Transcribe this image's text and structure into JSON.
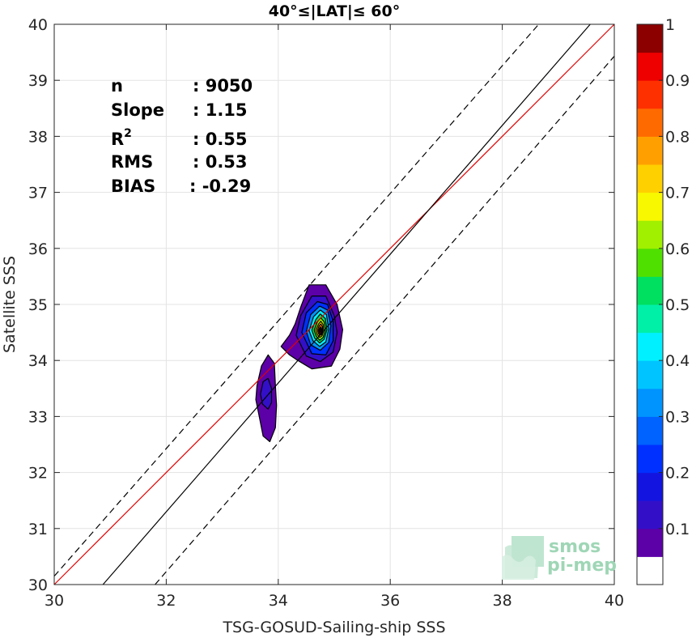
{
  "chart_data": {
    "type": "scatter",
    "subtype": "density-contour",
    "title": "40°≤|LAT|≤ 60°",
    "xlabel": "TSG-GOSUD-Sailing-ship SSS",
    "ylabel": "Satellite SSS",
    "xlim": [
      30,
      40
    ],
    "ylim": [
      30,
      40
    ],
    "xticks": [
      "30",
      "32",
      "34",
      "36",
      "38",
      "40"
    ],
    "yticks": [
      "30",
      "31",
      "32",
      "33",
      "34",
      "35",
      "36",
      "37",
      "38",
      "39",
      "40"
    ],
    "grid": true,
    "stats": [
      {
        "label": "n",
        "value": ": 9050"
      },
      {
        "label": "Slope",
        "value": ": 1.15"
      },
      {
        "label": "R",
        "sup": "2",
        "value": ": 0.55"
      },
      {
        "label": "RMS",
        "value": ": 0.53"
      },
      {
        "label": "BIAS",
        "value": ": -0.29"
      }
    ],
    "lines": [
      {
        "role": "one-to-one",
        "color": "#e00000",
        "style": "solid",
        "points": [
          [
            30,
            30
          ],
          [
            40,
            40
          ]
        ]
      },
      {
        "role": "regression-fit",
        "color": "#000000",
        "style": "solid",
        "points": [
          [
            30.87,
            30
          ],
          [
            39.57,
            40
          ]
        ]
      },
      {
        "role": "upper-bound",
        "color": "#000000",
        "style": "dashed",
        "points": [
          [
            30,
            30.15
          ],
          [
            38.65,
            40
          ]
        ]
      },
      {
        "role": "lower-bound",
        "color": "#000000",
        "style": "dashed",
        "points": [
          [
            31.8,
            30
          ],
          [
            40,
            39.43
          ]
        ]
      }
    ],
    "density_clusters": [
      {
        "center": [
          34.75,
          34.55
        ],
        "levels": [
          {
            "level": 0.05,
            "pts": [
              [
                34.05,
                34.25
              ],
              [
                34.2,
                34.45
              ],
              [
                34.3,
                34.65
              ],
              [
                34.4,
                34.95
              ],
              [
                34.55,
                35.35
              ],
              [
                34.85,
                35.35
              ],
              [
                35.05,
                35.0
              ],
              [
                35.15,
                34.55
              ],
              [
                35.1,
                34.2
              ],
              [
                34.95,
                33.9
              ],
              [
                34.6,
                33.85
              ],
              [
                34.35,
                34.0
              ],
              [
                34.2,
                34.1
              ]
            ]
          },
          {
            "level": 0.1,
            "pts": [
              [
                34.32,
                34.45
              ],
              [
                34.4,
                34.8
              ],
              [
                34.6,
                35.15
              ],
              [
                34.85,
                35.15
              ],
              [
                35.0,
                34.8
              ],
              [
                35.05,
                34.5
              ],
              [
                34.98,
                34.15
              ],
              [
                34.75,
                33.98
              ],
              [
                34.5,
                34.08
              ]
            ]
          },
          {
            "level": 0.2,
            "pts": [
              [
                34.42,
                34.5
              ],
              [
                34.5,
                34.85
              ],
              [
                34.7,
                35.05
              ],
              [
                34.88,
                35.0
              ],
              [
                34.98,
                34.7
              ],
              [
                34.98,
                34.35
              ],
              [
                34.85,
                34.1
              ],
              [
                34.6,
                34.12
              ]
            ]
          },
          {
            "level": 0.3,
            "pts": [
              [
                34.5,
                34.52
              ],
              [
                34.58,
                34.82
              ],
              [
                34.74,
                34.97
              ],
              [
                34.88,
                34.9
              ],
              [
                34.94,
                34.62
              ],
              [
                34.9,
                34.32
              ],
              [
                34.75,
                34.18
              ],
              [
                34.58,
                34.28
              ]
            ]
          },
          {
            "level": 0.4,
            "pts": [
              [
                34.55,
                34.53
              ],
              [
                34.63,
                34.78
              ],
              [
                34.75,
                34.9
              ],
              [
                34.86,
                34.82
              ],
              [
                34.9,
                34.56
              ],
              [
                34.85,
                34.33
              ],
              [
                34.74,
                34.25
              ],
              [
                34.62,
                34.35
              ]
            ]
          },
          {
            "level": 0.5,
            "pts": [
              [
                34.6,
                34.54
              ],
              [
                34.67,
                34.73
              ],
              [
                34.75,
                34.83
              ],
              [
                34.84,
                34.75
              ],
              [
                34.87,
                34.55
              ],
              [
                34.82,
                34.38
              ],
              [
                34.74,
                34.31
              ],
              [
                34.65,
                34.4
              ]
            ]
          },
          {
            "level": 0.6,
            "pts": [
              [
                34.64,
                34.54
              ],
              [
                34.7,
                34.69
              ],
              [
                34.76,
                34.76
              ],
              [
                34.82,
                34.69
              ],
              [
                34.84,
                34.54
              ],
              [
                34.8,
                34.41
              ],
              [
                34.74,
                34.36
              ],
              [
                34.68,
                34.43
              ]
            ]
          },
          {
            "level": 0.7,
            "pts": [
              [
                34.67,
                34.54
              ],
              [
                34.72,
                34.65
              ],
              [
                34.76,
                34.7
              ],
              [
                34.8,
                34.64
              ],
              [
                34.81,
                34.53
              ],
              [
                34.78,
                34.44
              ],
              [
                34.74,
                34.41
              ],
              [
                34.7,
                34.46
              ]
            ]
          },
          {
            "level": 0.8,
            "pts": [
              [
                34.7,
                34.54
              ],
              [
                34.73,
                34.62
              ],
              [
                34.76,
                34.65
              ],
              [
                34.79,
                34.6
              ],
              [
                34.79,
                34.52
              ],
              [
                34.77,
                34.46
              ],
              [
                34.74,
                34.45
              ],
              [
                34.72,
                34.48
              ]
            ]
          },
          {
            "level": 0.9,
            "pts": [
              [
                34.72,
                34.54
              ],
              [
                34.75,
                34.6
              ],
              [
                34.77,
                34.58
              ],
              [
                34.78,
                34.52
              ],
              [
                34.76,
                34.48
              ],
              [
                34.74,
                34.48
              ]
            ]
          },
          {
            "level": 0.95,
            "pts": [
              [
                34.735,
                34.54
              ],
              [
                34.755,
                34.575
              ],
              [
                34.765,
                34.54
              ],
              [
                34.755,
                34.505
              ]
            ]
          }
        ]
      },
      {
        "center": [
          33.8,
          33.4
        ],
        "levels": [
          {
            "level": 0.05,
            "pts": [
              [
                33.62,
                33.55
              ],
              [
                33.7,
                33.9
              ],
              [
                33.82,
                34.1
              ],
              [
                33.93,
                33.95
              ],
              [
                33.95,
                33.55
              ],
              [
                33.97,
                33.2
              ],
              [
                33.95,
                32.8
              ],
              [
                33.85,
                32.55
              ],
              [
                33.73,
                32.65
              ],
              [
                33.65,
                33.05
              ],
              [
                33.6,
                33.3
              ]
            ]
          },
          {
            "level": 0.1,
            "pts": [
              [
                33.68,
                33.4
              ],
              [
                33.73,
                33.62
              ],
              [
                33.82,
                33.68
              ],
              [
                33.88,
                33.5
              ],
              [
                33.88,
                33.25
              ],
              [
                33.82,
                33.13
              ],
              [
                33.72,
                33.22
              ]
            ]
          }
        ]
      }
    ],
    "colorbar": {
      "min": 0,
      "max": 1,
      "ticks": [
        "0.1",
        "0.2",
        "0.3",
        "0.4",
        "0.5",
        "0.6",
        "0.7",
        "0.8",
        "0.9",
        "1"
      ],
      "bands": [
        {
          "from": 0.0,
          "to": 0.05,
          "color": "#ffffff"
        },
        {
          "from": 0.05,
          "to": 0.1,
          "color": "#5c00a8"
        },
        {
          "from": 0.1,
          "to": 0.15,
          "color": "#3310c8"
        },
        {
          "from": 0.15,
          "to": 0.2,
          "color": "#1414e0"
        },
        {
          "from": 0.2,
          "to": 0.25,
          "color": "#0030ff"
        },
        {
          "from": 0.25,
          "to": 0.3,
          "color": "#0062ff"
        },
        {
          "from": 0.3,
          "to": 0.35,
          "color": "#0094ff"
        },
        {
          "from": 0.35,
          "to": 0.4,
          "color": "#00c4ff"
        },
        {
          "from": 0.4,
          "to": 0.45,
          "color": "#00f0ff"
        },
        {
          "from": 0.45,
          "to": 0.5,
          "color": "#00f0a8"
        },
        {
          "from": 0.5,
          "to": 0.55,
          "color": "#00e060"
        },
        {
          "from": 0.55,
          "to": 0.6,
          "color": "#50e000"
        },
        {
          "from": 0.6,
          "to": 0.65,
          "color": "#a0f000"
        },
        {
          "from": 0.65,
          "to": 0.7,
          "color": "#f8f800"
        },
        {
          "from": 0.7,
          "to": 0.75,
          "color": "#ffd000"
        },
        {
          "from": 0.75,
          "to": 0.8,
          "color": "#ffa000"
        },
        {
          "from": 0.8,
          "to": 0.85,
          "color": "#ff6a00"
        },
        {
          "from": 0.85,
          "to": 0.9,
          "color": "#ff3000"
        },
        {
          "from": 0.9,
          "to": 0.95,
          "color": "#ee0000"
        },
        {
          "from": 0.95,
          "to": 1.0,
          "color": "#8c0000"
        }
      ]
    }
  },
  "logo": {
    "line1": "smos",
    "line2": "pi-mep"
  }
}
